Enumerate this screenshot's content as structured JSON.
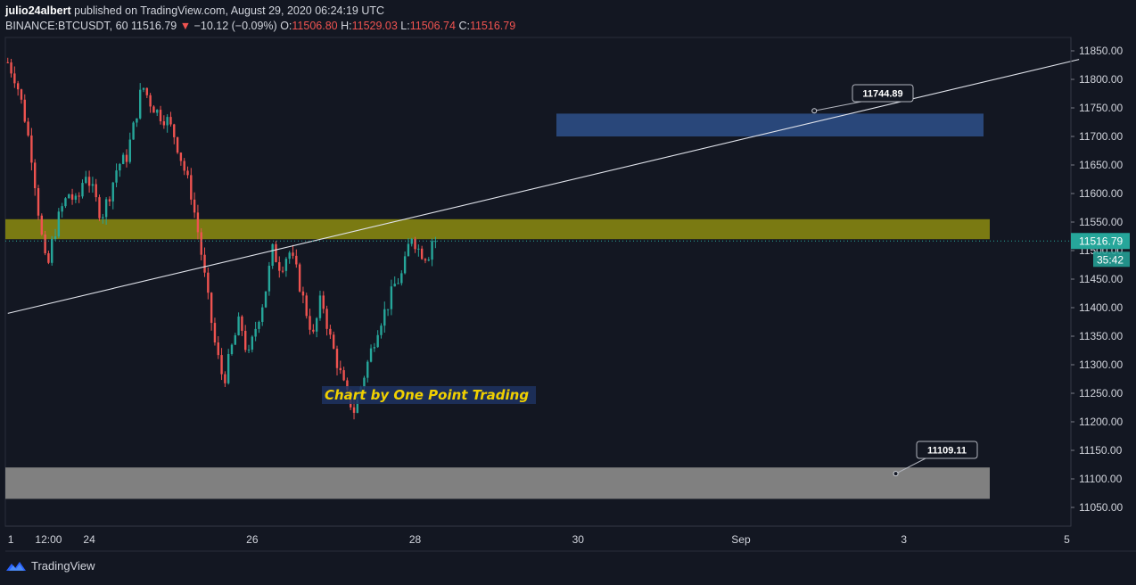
{
  "header": {
    "author": "julio24albert",
    "published_text": "published on TradingView.com, August 29, 2020 06:24:19 UTC",
    "symbol": "BINANCE:BTCUSDT, 60",
    "last": "11516.79",
    "change_arrow": "▼",
    "change": "−10.12 (−0.09%)",
    "o_label": "O:",
    "o_value": "11506.80",
    "h_label": "H:",
    "h_value": "11529.03",
    "l_label": "L:",
    "l_value": "11506.74",
    "c_label": "C:",
    "c_value": "11516.79"
  },
  "footer": {
    "brand": "TradingView"
  },
  "colors": {
    "background": "#131722",
    "up": "#26a69a",
    "down": "#ef5350",
    "yellow_zone": "#808012",
    "blue_zone": "#2a4a80",
    "gray_zone": "#808080",
    "price_tag": "#26a69a"
  },
  "chart_data": {
    "type": "candlestick",
    "instrument": "BINANCE:BTCUSDT",
    "interval": "60",
    "ylim": [
      11020,
      11880
    ],
    "y_ticks": [
      11850,
      11800,
      11750,
      11700,
      11650,
      11600,
      11550,
      11500,
      11450,
      11400,
      11350,
      11300,
      11250,
      11200,
      11150,
      11100,
      11050
    ],
    "y_tick_labels": [
      "11850.00",
      "11800.00",
      "11750.00",
      "11700.00",
      "11650.00",
      "11600.00",
      "11550.00",
      "11500.00",
      "11450.00",
      "11400.00",
      "11350.00",
      "11300.00",
      "11250.00",
      "11200.00",
      "11150.00",
      "11100.00",
      "11050.00"
    ],
    "x_ticks": [
      {
        "label": "1",
        "day": 22.0
      },
      {
        "label": "12:00",
        "day": 22.5
      },
      {
        "label": "24",
        "day": 23.0
      },
      {
        "label": "26",
        "day": 25.0
      },
      {
        "label": "28",
        "day": 27.0
      },
      {
        "label": "30",
        "day": 29.0
      },
      {
        "label": "Sep",
        "day": 31.0
      },
      {
        "label": "3",
        "day": 33.0
      },
      {
        "label": "5",
        "day": 35.0
      }
    ],
    "xlim_days": [
      21.97,
      35.05
    ],
    "price_path": [
      [
        22.0,
        11830
      ],
      [
        22.1,
        11800
      ],
      [
        22.2,
        11740
      ],
      [
        22.3,
        11660
      ],
      [
        22.4,
        11540
      ],
      [
        22.48,
        11460
      ],
      [
        22.55,
        11520
      ],
      [
        22.65,
        11570
      ],
      [
        22.75,
        11600
      ],
      [
        22.85,
        11580
      ],
      [
        22.95,
        11640
      ],
      [
        23.05,
        11600
      ],
      [
        23.15,
        11560
      ],
      [
        23.25,
        11600
      ],
      [
        23.35,
        11650
      ],
      [
        23.45,
        11660
      ],
      [
        23.55,
        11720
      ],
      [
        23.65,
        11790
      ],
      [
        23.75,
        11760
      ],
      [
        23.85,
        11740
      ],
      [
        23.95,
        11730
      ],
      [
        24.05,
        11700
      ],
      [
        24.15,
        11650
      ],
      [
        24.25,
        11600
      ],
      [
        24.35,
        11520
      ],
      [
        24.45,
        11420
      ],
      [
        24.55,
        11330
      ],
      [
        24.65,
        11270
      ],
      [
        24.75,
        11330
      ],
      [
        24.85,
        11380
      ],
      [
        24.95,
        11310
      ],
      [
        25.05,
        11370
      ],
      [
        25.15,
        11420
      ],
      [
        25.25,
        11500
      ],
      [
        25.35,
        11470
      ],
      [
        25.45,
        11500
      ],
      [
        25.55,
        11460
      ],
      [
        25.65,
        11400
      ],
      [
        25.75,
        11350
      ],
      [
        25.85,
        11420
      ],
      [
        25.95,
        11350
      ],
      [
        26.05,
        11300
      ],
      [
        26.15,
        11250
      ],
      [
        26.25,
        11220
      ],
      [
        26.35,
        11270
      ],
      [
        26.45,
        11320
      ],
      [
        26.55,
        11370
      ],
      [
        26.65,
        11400
      ],
      [
        26.75,
        11440
      ],
      [
        26.85,
        11460
      ],
      [
        26.95,
        11530
      ],
      [
        27.05,
        11500
      ],
      [
        27.15,
        11490
      ],
      [
        27.25,
        11520
      ]
    ],
    "current_price": 11516.79,
    "current_price_label": "11516.79",
    "countdown_label": "35:42",
    "zones": [
      {
        "name": "resistance-zone",
        "y_from": 11520,
        "y_to": 11555
      },
      {
        "name": "target-zone",
        "y_from": 11700,
        "y_to": 11740
      },
      {
        "name": "support-zone",
        "y_from": 11065,
        "y_to": 11120
      }
    ],
    "trendline": {
      "from": [
        22.0,
        11390
      ],
      "to": [
        35.15,
        11835
      ]
    },
    "callouts": [
      {
        "label": "11744.89",
        "value": 11744.89,
        "day": 31.9
      },
      {
        "label": "11109.11",
        "value": 11109.11,
        "day": 32.9
      }
    ],
    "annotation": "Chart by One Point Trading"
  }
}
